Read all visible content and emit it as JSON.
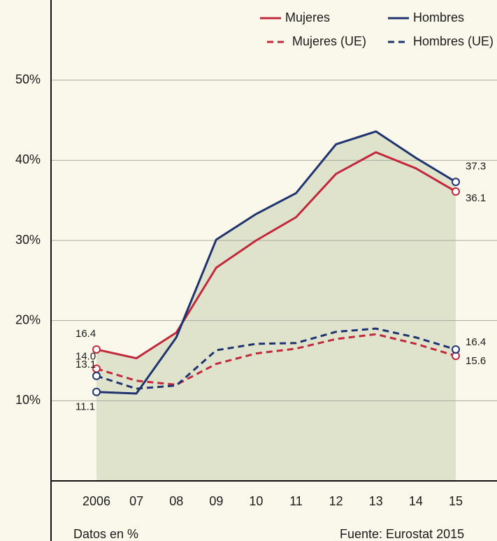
{
  "chart_data": {
    "type": "line",
    "categories": [
      "2006",
      "07",
      "08",
      "09",
      "10",
      "11",
      "12",
      "13",
      "14",
      "15"
    ],
    "series": [
      {
        "name": "Mujeres",
        "color": "#c1283b",
        "dashed": false,
        "values": [
          16.4,
          15.3,
          18.5,
          26.6,
          30.0,
          32.9,
          38.3,
          41.0,
          39.0,
          36.1
        ],
        "value_labels": [
          "16.4",
          null,
          null,
          null,
          null,
          null,
          null,
          null,
          null,
          "36.1"
        ]
      },
      {
        "name": "Hombres",
        "color": "#1f3370",
        "dashed": false,
        "values": [
          11.1,
          10.9,
          17.9,
          30.1,
          33.3,
          35.9,
          42.0,
          43.6,
          40.3,
          37.3
        ],
        "value_labels": [
          "11.1",
          null,
          null,
          null,
          null,
          null,
          null,
          null,
          null,
          "37.3"
        ]
      },
      {
        "name": "Mujeres (UE)",
        "color": "#c1283b",
        "dashed": true,
        "values": [
          14.0,
          12.5,
          12.0,
          14.6,
          15.9,
          16.5,
          17.7,
          18.3,
          17.1,
          15.6
        ],
        "value_labels": [
          "14.0",
          null,
          null,
          null,
          null,
          null,
          null,
          null,
          null,
          "15.6"
        ]
      },
      {
        "name": "Hombres (UE)",
        "color": "#1f3370",
        "dashed": true,
        "values": [
          13.1,
          11.5,
          11.9,
          16.3,
          17.1,
          17.2,
          18.6,
          19.0,
          17.9,
          16.4
        ],
        "value_labels": [
          "13.1",
          null,
          null,
          null,
          null,
          null,
          null,
          null,
          null,
          "16.4"
        ]
      }
    ],
    "ylim": [
      0,
      60
    ],
    "yticks": [
      {
        "value": 10,
        "label": "10%"
      },
      {
        "value": 20,
        "label": "20%"
      },
      {
        "value": 30,
        "label": "30%"
      },
      {
        "value": 40,
        "label": "40%"
      },
      {
        "value": 50,
        "label": "50%"
      }
    ],
    "grid": true,
    "fill_color": "#e0e3cc",
    "note": "Datos en %",
    "source": "Fuente: Eurostat 2015"
  }
}
